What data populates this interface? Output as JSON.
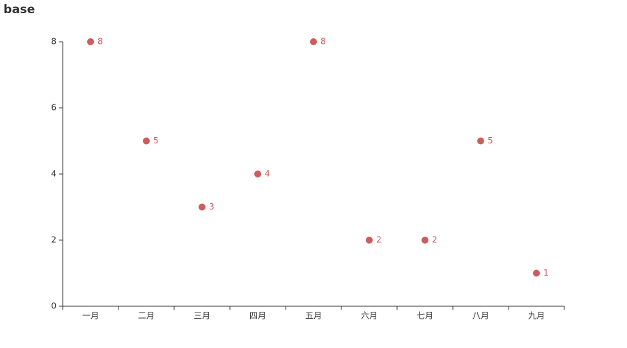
{
  "chart_data": {
    "type": "scatter",
    "title": "base",
    "categories": [
      "一月",
      "二月",
      "三月",
      "四月",
      "五月",
      "六月",
      "七月",
      "八月",
      "九月"
    ],
    "values": [
      8,
      5,
      3,
      4,
      8,
      2,
      2,
      5,
      1
    ],
    "color": "#cd5c5c",
    "ylim": [
      0,
      8
    ],
    "yticks": [
      0,
      2,
      4,
      6,
      8
    ],
    "grid": false,
    "show_labels": true
  }
}
